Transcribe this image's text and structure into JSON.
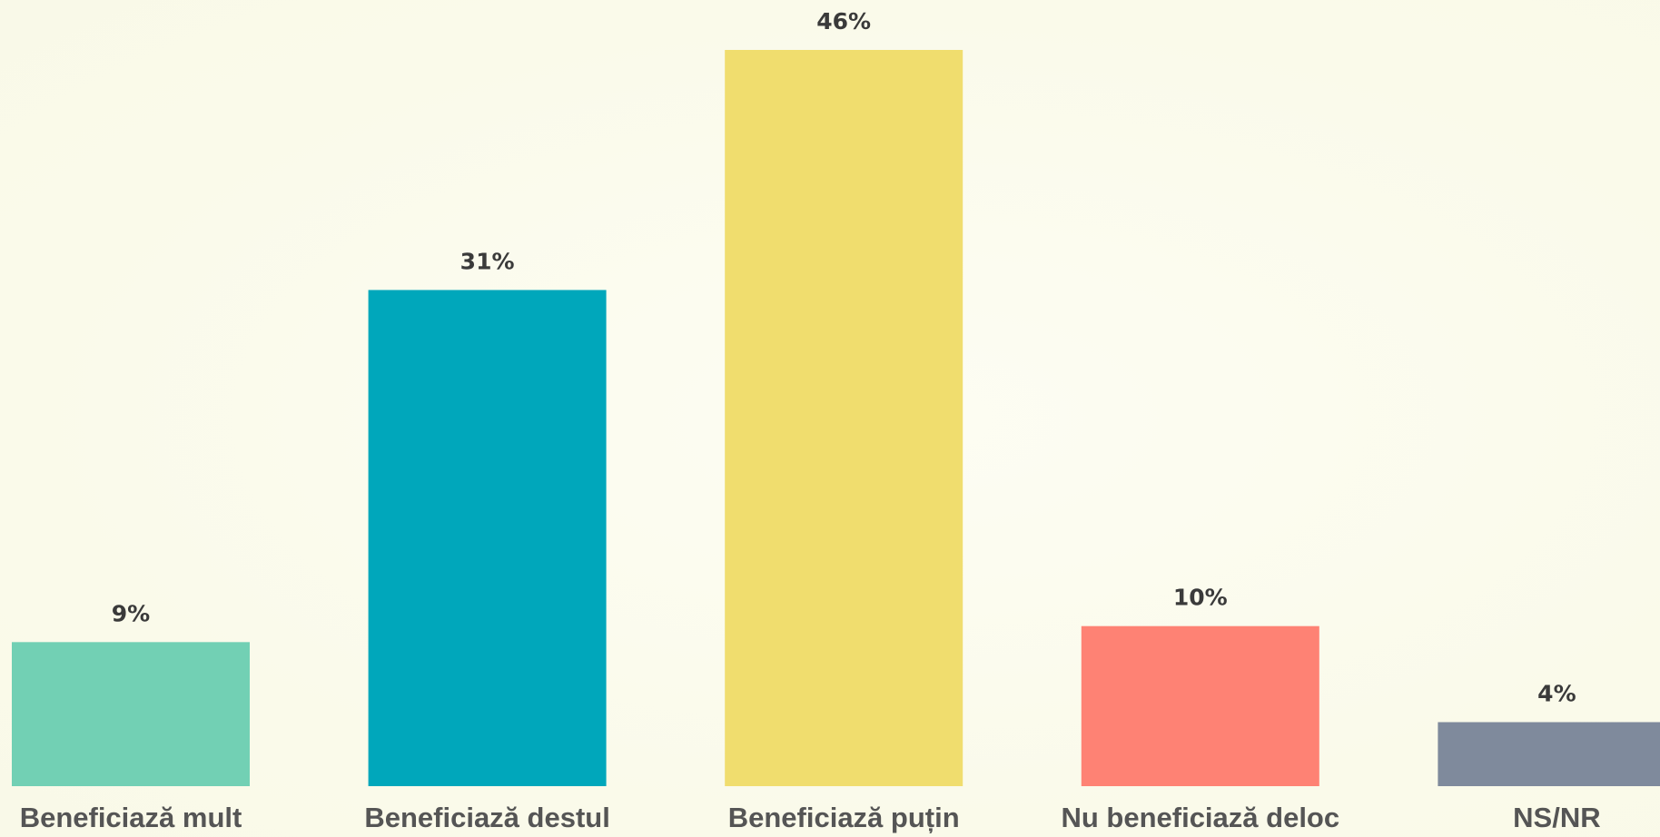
{
  "chart_data": {
    "type": "bar",
    "categories": [
      "Beneficiază mult",
      "Beneficiază destul",
      "Beneficiază puțin",
      "Nu beneficiază deloc",
      "NS/NR"
    ],
    "values": [
      9,
      31,
      46,
      10,
      4
    ],
    "value_labels": [
      "9%",
      "31%",
      "46%",
      "10%",
      "4%"
    ],
    "colors": [
      "#72d0b4",
      "#00a7bb",
      "#f0dd6e",
      "#fe8274",
      "#7f8a9c"
    ]
  }
}
